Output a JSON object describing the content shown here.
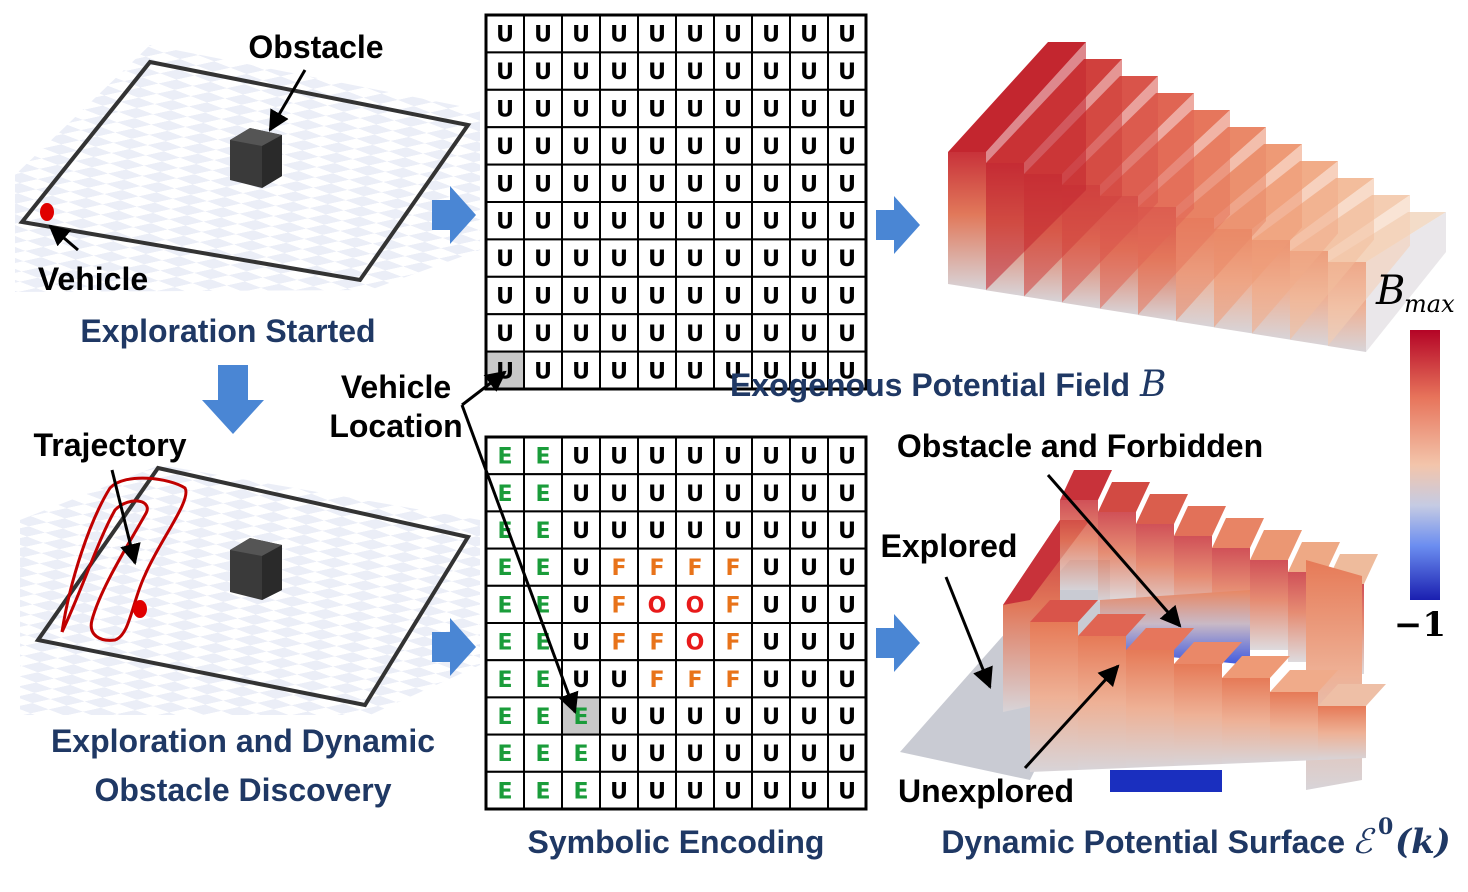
{
  "labels": {
    "obstacle": "Obstacle",
    "vehicle": "Vehicle",
    "exploration_started": "Exploration Started",
    "trajectory": "Trajectory",
    "discovery_line1": "Exploration and Dynamic",
    "discovery_line2": "Obstacle Discovery",
    "vehicle_location_line1": "Vehicle",
    "vehicle_location_line2": "Location",
    "symbolic_encoding": "Symbolic Encoding",
    "exogenous_field": "Exogenous Potential Field",
    "exogenous_symbol": "B",
    "colorbar_max_base": "B",
    "colorbar_max_sub": "max",
    "colorbar_min": "−1",
    "obstacle_forbidden": "Obstacle and Forbidden",
    "explored": "Explored",
    "unexplored": "Unexplored",
    "dynamic_surface": "Dynamic Potential Surface",
    "dynamic_symbol": "ℰ",
    "dynamic_superscript": "0",
    "dynamic_arg": "(k)"
  },
  "grid_top": [
    "UUUUUUUUUU",
    "UUUUUUUUUU",
    "UUUUUUUUUU",
    "UUUUUUUUUU",
    "UUUUUUUUUU",
    "UUUUUUUUUU",
    "UUUUUUUUUU",
    "UUUUUUUUUU",
    "UUUUUUUUUU",
    "UUUUUUUUUU"
  ],
  "grid_top_vehicle_cell": [
    9,
    0
  ],
  "grid_bottom": [
    "EEUUUUUUUU",
    "EEUUUUUUUU",
    "EEUUUUUUUU",
    "EEUFFFFUUU",
    "EEUFOOFUUU",
    "EEUFFOFUUU",
    "EEUUFFFUUU",
    "EEEUUUUUUU",
    "EEEUUUUUUU",
    "EEEUUUUUUU"
  ],
  "grid_bottom_vehicle_cell": [
    7,
    2
  ],
  "symbol_colors": {
    "U": "#000000",
    "E": "#1a9c3a",
    "F": "#e8731a",
    "O": "#e81a1a"
  },
  "colors": {
    "title_blue": "#1f3864",
    "arrow_blue": "#4a86d4",
    "trajectory_red": "#c00000",
    "vehicle_cell_gray": "#c8c8c8"
  }
}
